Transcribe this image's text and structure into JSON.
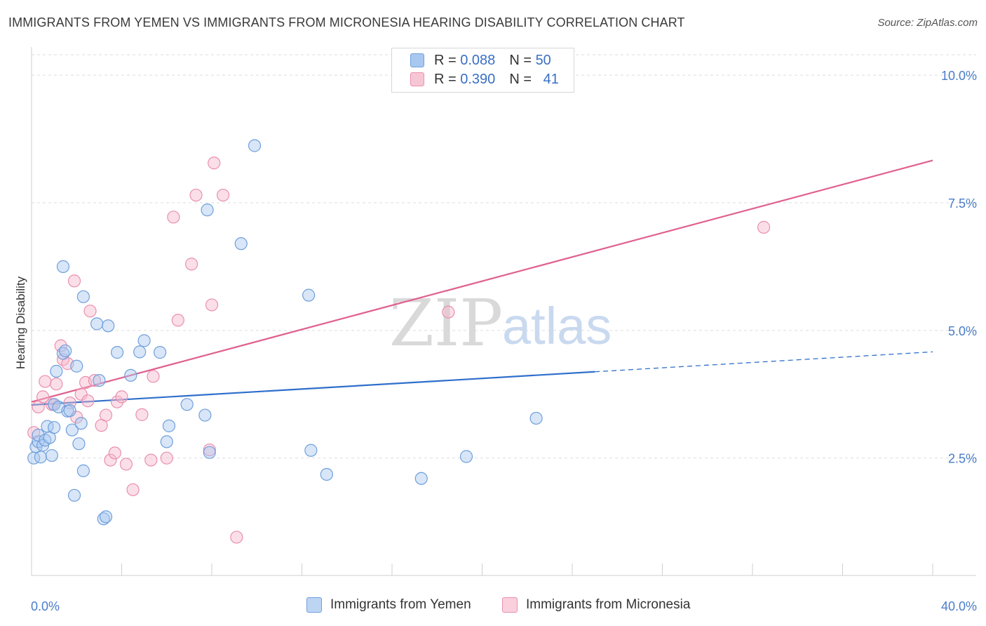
{
  "title": "IMMIGRANTS FROM YEMEN VS IMMIGRANTS FROM MICRONESIA HEARING DISABILITY CORRELATION CHART",
  "source": "Source: ZipAtlas.com",
  "watermark": {
    "zip": "ZIP",
    "atlas": "atlas"
  },
  "legend": {
    "r_label": "R =",
    "n_label": "N =",
    "yemen": {
      "r": "0.088",
      "n": "50"
    },
    "micronesia": {
      "r": "0.390",
      "n": "41"
    }
  },
  "colors": {
    "yemen_fill": "#a9c8f0",
    "yemen_stroke": "#6f9fdc",
    "yemen_line": "#2f6fcb",
    "micronesia_fill": "#f7b9cc",
    "micronesia_stroke": "#ea8fae",
    "micronesia_line": "#e0608f",
    "tick_text": "#4a7cc9",
    "grid": "#dddddd"
  },
  "chart_data": {
    "type": "scatter",
    "title": "IMMIGRANTS FROM YEMEN VS IMMIGRANTS FROM MICRONESIA HEARING DISABILITY CORRELATION CHART",
    "xlabel": "",
    "ylabel": "Hearing Disability",
    "xlim": [
      0,
      40
    ],
    "ylim": [
      0.2,
      10.4
    ],
    "x_tick_labels": [
      {
        "value": 0,
        "label": "0.0%"
      },
      {
        "value": 40,
        "label": "40.0%"
      }
    ],
    "y_ticks": [
      {
        "value": 2.5,
        "label": "2.5%"
      },
      {
        "value": 5.0,
        "label": "5.0%"
      },
      {
        "value": 7.5,
        "label": "7.5%"
      },
      {
        "value": 10.0,
        "label": "10.0%"
      }
    ],
    "series": [
      {
        "name": "Immigrants from Yemen",
        "color": "#6f9fdc",
        "trend": {
          "x0": 0,
          "y0": 3.54,
          "x1": 25,
          "y1": 4.19,
          "dashed_to_x": 40,
          "dashed_to_y": 4.58
        },
        "points": [
          [
            0.1,
            2.5
          ],
          [
            0.2,
            2.72
          ],
          [
            0.3,
            2.82
          ],
          [
            0.3,
            2.95
          ],
          [
            0.4,
            2.52
          ],
          [
            0.5,
            2.75
          ],
          [
            0.6,
            2.85
          ],
          [
            0.7,
            3.12
          ],
          [
            0.8,
            2.9
          ],
          [
            0.9,
            2.55
          ],
          [
            1.0,
            3.55
          ],
          [
            1.0,
            3.1
          ],
          [
            1.1,
            4.2
          ],
          [
            1.2,
            3.5
          ],
          [
            1.4,
            6.25
          ],
          [
            1.4,
            4.55
          ],
          [
            1.5,
            4.6
          ],
          [
            1.6,
            3.42
          ],
          [
            1.7,
            3.43
          ],
          [
            1.8,
            3.05
          ],
          [
            1.9,
            1.77
          ],
          [
            2.0,
            4.3
          ],
          [
            2.1,
            2.78
          ],
          [
            2.2,
            3.18
          ],
          [
            2.3,
            5.66
          ],
          [
            2.3,
            2.25
          ],
          [
            2.9,
            5.13
          ],
          [
            3.0,
            4.02
          ],
          [
            3.2,
            1.31
          ],
          [
            3.3,
            1.35
          ],
          [
            3.4,
            5.09
          ],
          [
            3.8,
            4.57
          ],
          [
            4.4,
            4.12
          ],
          [
            4.8,
            4.58
          ],
          [
            5.0,
            4.8
          ],
          [
            5.7,
            4.57
          ],
          [
            6.0,
            2.82
          ],
          [
            6.1,
            3.13
          ],
          [
            6.9,
            3.55
          ],
          [
            7.7,
            3.34
          ],
          [
            7.8,
            7.36
          ],
          [
            7.9,
            2.61
          ],
          [
            9.3,
            6.7
          ],
          [
            9.9,
            8.62
          ],
          [
            12.3,
            5.69
          ],
          [
            12.4,
            2.65
          ],
          [
            13.1,
            2.18
          ],
          [
            17.3,
            2.1
          ],
          [
            19.3,
            2.53
          ],
          [
            22.4,
            3.28
          ]
        ]
      },
      {
        "name": "Immigrants from Micronesia",
        "color": "#ea8fae",
        "trend": {
          "x0": 0,
          "y0": 3.6,
          "x1": 40,
          "y1": 8.33
        },
        "points": [
          [
            0.1,
            3.0
          ],
          [
            0.3,
            3.5
          ],
          [
            0.5,
            3.7
          ],
          [
            0.6,
            4.0
          ],
          [
            0.9,
            3.55
          ],
          [
            1.0,
            3.55
          ],
          [
            1.1,
            3.95
          ],
          [
            1.3,
            4.7
          ],
          [
            1.4,
            4.43
          ],
          [
            1.6,
            4.35
          ],
          [
            1.7,
            3.58
          ],
          [
            1.9,
            5.97
          ],
          [
            2.0,
            3.3
          ],
          [
            2.2,
            3.75
          ],
          [
            2.4,
            3.98
          ],
          [
            2.5,
            3.62
          ],
          [
            2.6,
            5.38
          ],
          [
            2.8,
            4.02
          ],
          [
            3.1,
            3.14
          ],
          [
            3.3,
            3.34
          ],
          [
            3.5,
            2.46
          ],
          [
            3.7,
            2.6
          ],
          [
            3.8,
            3.6
          ],
          [
            4.0,
            3.7
          ],
          [
            4.2,
            2.38
          ],
          [
            4.5,
            1.88
          ],
          [
            4.9,
            3.35
          ],
          [
            5.3,
            2.46
          ],
          [
            5.4,
            4.1
          ],
          [
            6.0,
            2.5
          ],
          [
            6.3,
            7.22
          ],
          [
            6.5,
            5.2
          ],
          [
            7.1,
            6.3
          ],
          [
            7.3,
            7.65
          ],
          [
            7.9,
            2.66
          ],
          [
            8.0,
            5.5
          ],
          [
            8.1,
            8.28
          ],
          [
            8.5,
            7.65
          ],
          [
            9.1,
            0.95
          ],
          [
            18.5,
            5.36
          ],
          [
            32.5,
            7.02
          ]
        ]
      }
    ]
  }
}
